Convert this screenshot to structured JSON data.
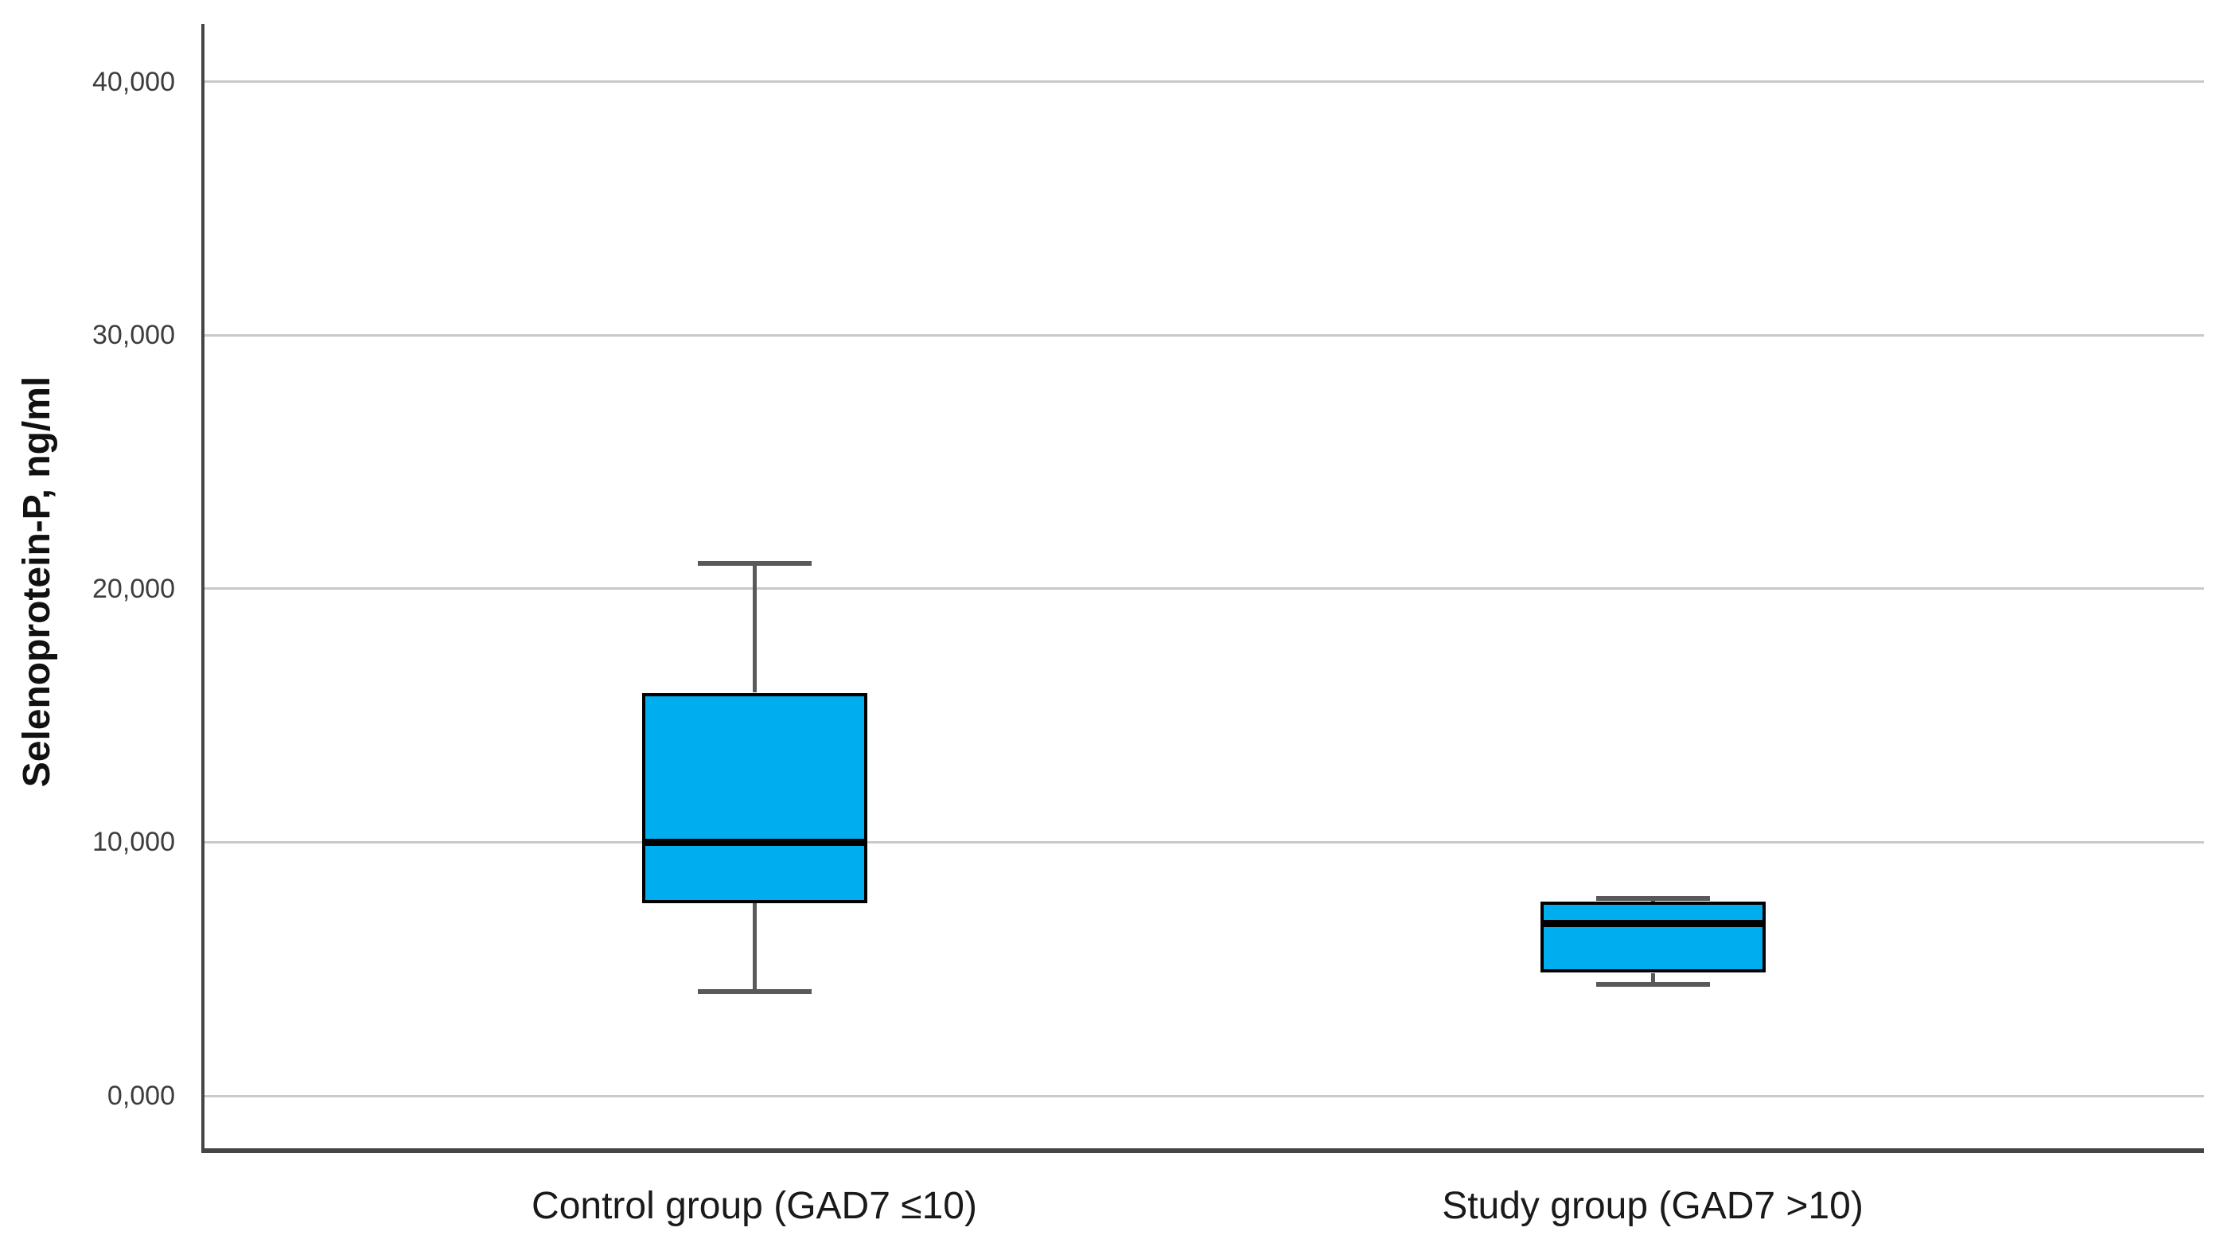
{
  "colors": {
    "background": "#FFFFFF",
    "box_fill": "#00ADEE",
    "box_border": "#000000",
    "median": "#000000",
    "whisker": "#595959",
    "gridline": "#C9C9C9",
    "axis_line": "#454545",
    "tick_label": "#3D3D3D",
    "category_label": "#1A1A1A"
  },
  "chart_data": {
    "type": "boxplot",
    "title": "",
    "xlabel": "",
    "ylabel": "Selenoprotein-P, ng/ml",
    "ylim": [
      -2200,
      42300
    ],
    "grid": true,
    "legend": "none",
    "y_ticks": [
      {
        "value": 0,
        "label": "0,000"
      },
      {
        "value": 10000,
        "label": "10,000"
      },
      {
        "value": 20000,
        "label": "20,000"
      },
      {
        "value": 30000,
        "label": "30,000"
      },
      {
        "value": 40000,
        "label": "40,000"
      }
    ],
    "categories": [
      "Control group (GAD7 ≤10)",
      "Study group (GAD7 >10)"
    ],
    "series": [
      {
        "name": "Control group (GAD7 ≤10)",
        "whisker_low": 4100,
        "q1": 7600,
        "median": 10000,
        "q3": 15900,
        "whisker_high": 21000
      },
      {
        "name": "Study group (GAD7 >10)",
        "whisker_low": 4400,
        "q1": 4850,
        "median": 6800,
        "q3": 7650,
        "whisker_high": 7800
      }
    ]
  }
}
